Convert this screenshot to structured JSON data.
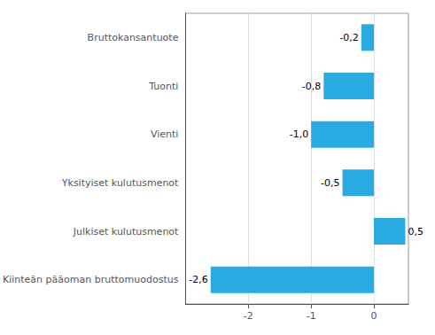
{
  "chart_data": {
    "type": "bar",
    "orientation": "horizontal",
    "categories": [
      "Kiinteän pääoman bruttomuodostus",
      "Julkiset kulutusmenot",
      "Yksityiset kulutusmenot",
      "Vienti",
      "Tuonti",
      "Bruttokansantuote"
    ],
    "values": [
      -2.6,
      0.5,
      -0.5,
      -1.0,
      -0.8,
      -0.2
    ],
    "value_labels": [
      "-2,6",
      "0,5",
      "-0,5",
      "-1,0",
      "-0,8",
      "-0,2"
    ],
    "color": "#29abe2",
    "xlim": [
      -3.0,
      0.55
    ],
    "xticks": [
      -2,
      -1,
      0
    ],
    "grid": true,
    "data_labels": true
  }
}
